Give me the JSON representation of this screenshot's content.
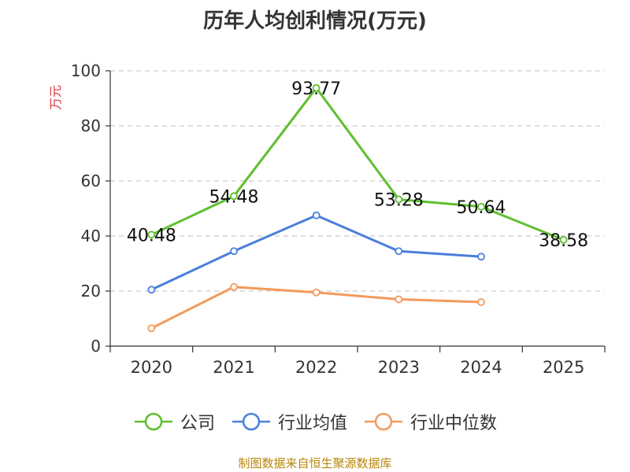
{
  "title": "历年人均创利情况(万元)",
  "source": "制图数据来自恒生聚源数据库",
  "colors": {
    "company": "#5cc02e",
    "industry_avg": "#4a7fdc",
    "industry_median": "#f59a5c",
    "grid": "#cccccc",
    "axis": "#333333",
    "ylabel": "#e0353b"
  },
  "chart_data": {
    "type": "line",
    "title": "历年人均创利情况(万元)",
    "xlabel": "",
    "ylabel": "万元",
    "ylim": [
      0,
      100
    ],
    "yticks": [
      0,
      20,
      40,
      60,
      80,
      100
    ],
    "categories": [
      "2020",
      "2021",
      "2022",
      "2023",
      "2024",
      "2025"
    ],
    "grid": true,
    "legend_position": "bottom",
    "series": [
      {
        "name": "公司",
        "values": [
          40.48,
          54.48,
          93.77,
          53.28,
          50.64,
          38.58
        ],
        "labels": [
          "40.48",
          "54.48",
          "93.77",
          "53.28",
          "50.64",
          "38.58"
        ],
        "color": "#5cc02e"
      },
      {
        "name": "行业均值",
        "values": [
          20.5,
          34.5,
          47.5,
          34.5,
          32.5,
          null
        ],
        "color": "#4a7fdc"
      },
      {
        "name": "行业中位数",
        "values": [
          6.5,
          21.5,
          19.5,
          17.0,
          16.0,
          null
        ],
        "color": "#f59a5c"
      }
    ]
  }
}
